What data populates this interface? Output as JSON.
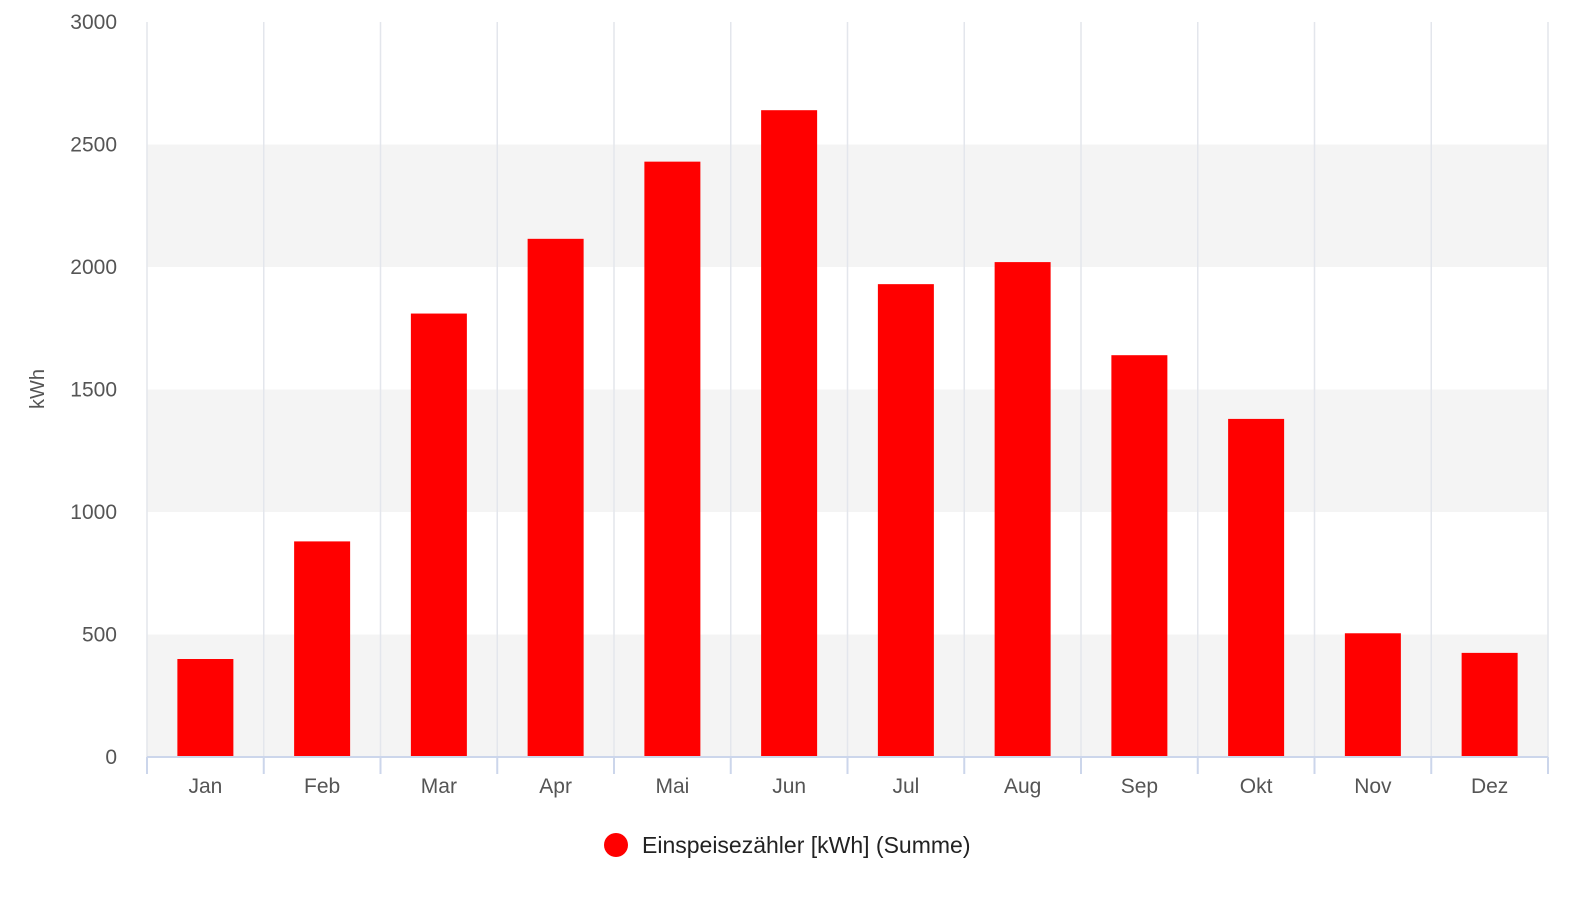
{
  "chart_data": {
    "type": "bar",
    "categories": [
      "Jan",
      "Feb",
      "Mar",
      "Apr",
      "Mai",
      "Jun",
      "Jul",
      "Aug",
      "Sep",
      "Okt",
      "Nov",
      "Dez"
    ],
    "series": [
      {
        "name": "Einspeisezähler [kWh] (Summe)",
        "values": [
          400,
          880,
          1810,
          2115,
          2430,
          2640,
          1930,
          2020,
          1640,
          1380,
          505,
          425
        ],
        "color": "#ff0000"
      }
    ],
    "ylabel": "kWh",
    "ylim": [
      0,
      3000
    ],
    "yticks": [
      "0",
      "500",
      "1000",
      "1500",
      "2000",
      "2500",
      "3000"
    ],
    "grid": true,
    "legend_position": "bottom-center",
    "colors": {
      "bar": "#ff0000",
      "band": "#f4f4f4",
      "gridline": "#e3e6ec",
      "axis": "#ccd6eb",
      "text": "#555555"
    }
  }
}
